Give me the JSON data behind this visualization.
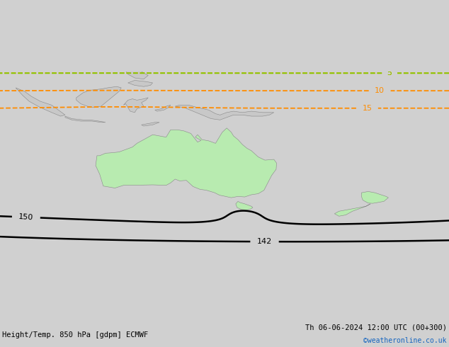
{
  "title_left": "Height/Temp. 850 hPa [gdpm] ECMWF",
  "title_right": "Th 06-06-2024 12:00 UTC (00+300)",
  "credit": "©weatheronline.co.uk",
  "background_color": "#d0d0d0",
  "land_color_aus": "#b8ebb0",
  "land_color_other": "#c8c8c8",
  "background_sea_color": "#dcdcdc",
  "figsize": [
    6.34,
    4.9
  ],
  "dpi": 100,
  "font_size_title": 7.5,
  "font_size_credit": 7
}
